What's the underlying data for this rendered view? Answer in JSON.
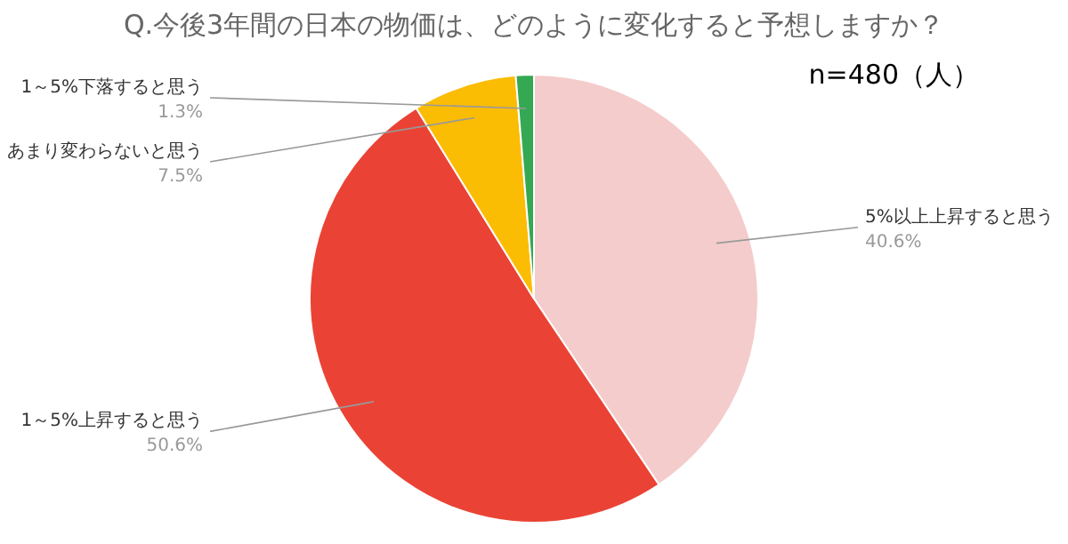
{
  "chart_data": {
    "type": "pie",
    "title": "Q.今後3年間の日本の物価は、どのように変化すると予想しますか？",
    "categories": [
      "5%以上上昇すると思う",
      "1～5%上昇すると思う",
      "あまり変わらないと思う",
      "1～5%下落すると思う"
    ],
    "values": [
      40.6,
      50.6,
      7.5,
      1.3
    ],
    "value_labels": [
      "40.6%",
      "50.6%",
      "7.5%",
      "1.3%"
    ],
    "colors": [
      "#f4cccc",
      "#ea4335",
      "#fbbc04",
      "#34a853"
    ],
    "annotations": [
      "n=480（人）"
    ],
    "legend": false
  }
}
